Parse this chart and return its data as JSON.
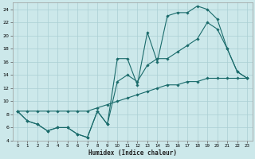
{
  "xlabel": "Humidex (Indice chaleur)",
  "bg_color": "#cce8ea",
  "grid_color": "#aacfd4",
  "line_color": "#1a6b6b",
  "xlim": [
    -0.5,
    23.5
  ],
  "ylim": [
    4,
    25
  ],
  "xticks": [
    0,
    1,
    2,
    3,
    4,
    5,
    6,
    7,
    8,
    9,
    10,
    11,
    12,
    13,
    14,
    15,
    16,
    17,
    18,
    19,
    20,
    21,
    22,
    23
  ],
  "yticks": [
    4,
    6,
    8,
    10,
    12,
    14,
    16,
    18,
    20,
    22,
    24
  ],
  "line1_x": [
    0,
    1,
    2,
    3,
    4,
    5,
    6,
    7,
    8,
    9,
    10,
    11,
    12,
    13,
    14,
    15,
    16,
    17,
    18,
    19,
    20,
    21,
    22,
    23
  ],
  "line1_y": [
    8.5,
    7.0,
    6.5,
    5.5,
    6.0,
    6.0,
    5.0,
    4.5,
    8.5,
    6.5,
    16.5,
    16.5,
    12.5,
    20.5,
    16.0,
    23.0,
    23.5,
    23.5,
    24.5,
    24.0,
    22.5,
    18.0,
    14.5,
    13.5
  ],
  "line2_x": [
    0,
    1,
    2,
    3,
    4,
    5,
    6,
    7,
    8,
    9,
    10,
    11,
    12,
    13,
    14,
    15,
    16,
    17,
    18,
    19,
    20,
    21,
    22,
    23
  ],
  "line2_y": [
    8.5,
    7.0,
    6.5,
    5.5,
    6.0,
    6.0,
    5.0,
    4.5,
    8.5,
    6.5,
    13.0,
    14.0,
    13.0,
    15.5,
    16.5,
    16.5,
    17.5,
    18.5,
    19.5,
    22.0,
    21.0,
    18.0,
    14.5,
    13.5
  ],
  "line3_x": [
    0,
    1,
    2,
    3,
    4,
    5,
    6,
    7,
    8,
    9,
    10,
    11,
    12,
    13,
    14,
    15,
    16,
    17,
    18,
    19,
    20,
    21,
    22,
    23
  ],
  "line3_y": [
    8.5,
    8.5,
    8.5,
    8.5,
    8.5,
    8.5,
    8.5,
    8.5,
    9.0,
    9.5,
    10.0,
    10.5,
    11.0,
    11.5,
    12.0,
    12.5,
    12.5,
    13.0,
    13.0,
    13.5,
    13.5,
    13.5,
    13.5,
    13.5
  ]
}
